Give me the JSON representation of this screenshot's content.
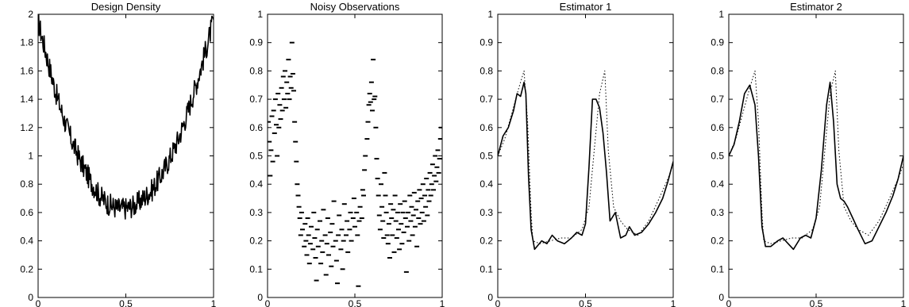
{
  "chart_data": [
    {
      "type": "line",
      "title": "Design Density",
      "xlabel": "",
      "ylabel": "",
      "xlim": [
        0,
        1
      ],
      "ylim": [
        0,
        2
      ],
      "xticks": [
        0,
        0.5,
        1
      ],
      "xtick_labels": [
        "0",
        "0.5",
        "1"
      ],
      "yticks": [
        0,
        0.2,
        0.4,
        0.6,
        0.8,
        1,
        1.2,
        1.4,
        1.6,
        1.8,
        2
      ],
      "ytick_labels": [
        "0",
        "0.2",
        "0.4",
        "0.6",
        "0.8",
        "1",
        "1.2",
        "1.4",
        "1.6",
        "1.8",
        "2"
      ],
      "grid": false,
      "series": [
        {
          "style": "solid",
          "x": [
            0,
            0.05,
            0.1,
            0.15,
            0.2,
            0.25,
            0.3,
            0.35,
            0.4,
            0.45,
            0.5,
            0.55,
            0.6,
            0.65,
            0.7,
            0.75,
            0.8,
            0.85,
            0.9,
            0.95,
            1
          ],
          "y": [
            1.95,
            1.7,
            1.45,
            1.25,
            1.08,
            0.94,
            0.82,
            0.72,
            0.66,
            0.63,
            0.63,
            0.65,
            0.7,
            0.76,
            0.86,
            0.98,
            1.12,
            1.3,
            1.5,
            1.72,
            1.96
          ],
          "noise_amplitude": 0.08
        }
      ]
    },
    {
      "type": "scatter",
      "title": "Noisy Observations",
      "xlabel": "",
      "ylabel": "",
      "xlim": [
        0,
        1
      ],
      "ylim": [
        0,
        1
      ],
      "xticks": [
        0,
        0.5,
        1
      ],
      "xtick_labels": [
        "0",
        "0.5",
        "1"
      ],
      "yticks": [
        0,
        0.1,
        0.2,
        0.3,
        0.4,
        0.5,
        0.6,
        0.7,
        0.8,
        0.9,
        1
      ],
      "ytick_labels": [
        "0",
        "0.1",
        "0.2",
        "0.3",
        "0.4",
        "0.5",
        "0.6",
        "0.7",
        "0.8",
        "0.9",
        "1"
      ],
      "grid": false,
      "points": [
        [
          0.005,
          0.62
        ],
        [
          0.01,
          0.55
        ],
        [
          0.015,
          0.43
        ],
        [
          0.02,
          0.52
        ],
        [
          0.025,
          0.64
        ],
        [
          0.03,
          0.48
        ],
        [
          0.035,
          0.66
        ],
        [
          0.04,
          0.58
        ],
        [
          0.045,
          0.7
        ],
        [
          0.05,
          0.61
        ],
        [
          0.055,
          0.5
        ],
        [
          0.06,
          0.72
        ],
        [
          0.065,
          0.6
        ],
        [
          0.07,
          0.68
        ],
        [
          0.075,
          0.63
        ],
        [
          0.08,
          0.74
        ],
        [
          0.085,
          0.66
        ],
        [
          0.09,
          0.78
        ],
        [
          0.095,
          0.7
        ],
        [
          0.1,
          0.8
        ],
        [
          0.105,
          0.67
        ],
        [
          0.11,
          0.76
        ],
        [
          0.115,
          0.72
        ],
        [
          0.12,
          0.84
        ],
        [
          0.125,
          0.7
        ],
        [
          0.13,
          0.78
        ],
        [
          0.135,
          0.74
        ],
        [
          0.14,
          0.9
        ],
        [
          0.145,
          0.79
        ],
        [
          0.15,
          0.73
        ],
        [
          0.155,
          0.62
        ],
        [
          0.16,
          0.55
        ],
        [
          0.165,
          0.48
        ],
        [
          0.17,
          0.4
        ],
        [
          0.175,
          0.36
        ],
        [
          0.18,
          0.32
        ],
        [
          0.185,
          0.28
        ],
        [
          0.19,
          0.22
        ],
        [
          0.195,
          0.3
        ],
        [
          0.2,
          0.24
        ],
        [
          0.21,
          0.18
        ],
        [
          0.215,
          0.26
        ],
        [
          0.22,
          0.2
        ],
        [
          0.225,
          0.15
        ],
        [
          0.23,
          0.28
        ],
        [
          0.235,
          0.22
        ],
        [
          0.24,
          0.12
        ],
        [
          0.245,
          0.19
        ],
        [
          0.25,
          0.25
        ],
        [
          0.26,
          0.17
        ],
        [
          0.265,
          0.3
        ],
        [
          0.27,
          0.21
        ],
        [
          0.275,
          0.14
        ],
        [
          0.28,
          0.06
        ],
        [
          0.285,
          0.24
        ],
        [
          0.29,
          0.18
        ],
        [
          0.3,
          0.27
        ],
        [
          0.305,
          0.12
        ],
        [
          0.31,
          0.2
        ],
        [
          0.315,
          0.16
        ],
        [
          0.32,
          0.31
        ],
        [
          0.33,
          0.22
        ],
        [
          0.335,
          0.08
        ],
        [
          0.34,
          0.19
        ],
        [
          0.345,
          0.28
        ],
        [
          0.35,
          0.15
        ],
        [
          0.36,
          0.23
        ],
        [
          0.365,
          0.11
        ],
        [
          0.37,
          0.26
        ],
        [
          0.375,
          0.18
        ],
        [
          0.38,
          0.34
        ],
        [
          0.39,
          0.2
        ],
        [
          0.395,
          0.13
        ],
        [
          0.4,
          0.05
        ],
        [
          0.405,
          0.22
        ],
        [
          0.41,
          0.29
        ],
        [
          0.42,
          0.17
        ],
        [
          0.425,
          0.24
        ],
        [
          0.43,
          0.1
        ],
        [
          0.435,
          0.2
        ],
        [
          0.44,
          0.33
        ],
        [
          0.45,
          0.22
        ],
        [
          0.455,
          0.27
        ],
        [
          0.46,
          0.16
        ],
        [
          0.47,
          0.24
        ],
        [
          0.475,
          0.3
        ],
        [
          0.48,
          0.2
        ],
        [
          0.49,
          0.28
        ],
        [
          0.495,
          0.35
        ],
        [
          0.5,
          0.25
        ],
        [
          0.51,
          0.3
        ],
        [
          0.515,
          0.22
        ],
        [
          0.52,
          0.04
        ],
        [
          0.525,
          0.27
        ],
        [
          0.53,
          0.32
        ],
        [
          0.54,
          0.28
        ],
        [
          0.545,
          0.38
        ],
        [
          0.55,
          0.36
        ],
        [
          0.555,
          0.45
        ],
        [
          0.56,
          0.5
        ],
        [
          0.57,
          0.56
        ],
        [
          0.575,
          0.62
        ],
        [
          0.58,
          0.68
        ],
        [
          0.585,
          0.72
        ],
        [
          0.59,
          0.69
        ],
        [
          0.595,
          0.76
        ],
        [
          0.6,
          0.66
        ],
        [
          0.605,
          0.84
        ],
        [
          0.61,
          0.7
        ],
        [
          0.615,
          0.71
        ],
        [
          0.62,
          0.6
        ],
        [
          0.625,
          0.49
        ],
        [
          0.63,
          0.42
        ],
        [
          0.635,
          0.36
        ],
        [
          0.64,
          0.29
        ],
        [
          0.645,
          0.24
        ],
        [
          0.65,
          0.4
        ],
        [
          0.655,
          0.32
        ],
        [
          0.66,
          0.27
        ],
        [
          0.665,
          0.21
        ],
        [
          0.67,
          0.44
        ],
        [
          0.675,
          0.36
        ],
        [
          0.68,
          0.3
        ],
        [
          0.685,
          0.22
        ],
        [
          0.69,
          0.19
        ],
        [
          0.695,
          0.26
        ],
        [
          0.7,
          0.14
        ],
        [
          0.705,
          0.33
        ],
        [
          0.71,
          0.28
        ],
        [
          0.715,
          0.22
        ],
        [
          0.72,
          0.31
        ],
        [
          0.725,
          0.16
        ],
        [
          0.73,
          0.36
        ],
        [
          0.735,
          0.27
        ],
        [
          0.74,
          0.21
        ],
        [
          0.745,
          0.3
        ],
        [
          0.75,
          0.24
        ],
        [
          0.755,
          0.17
        ],
        [
          0.76,
          0.33
        ],
        [
          0.765,
          0.26
        ],
        [
          0.77,
          0.19
        ],
        [
          0.775,
          0.3
        ],
        [
          0.78,
          0.23
        ],
        [
          0.785,
          0.34
        ],
        [
          0.79,
          0.28
        ],
        [
          0.795,
          0.09
        ],
        [
          0.8,
          0.25
        ],
        [
          0.805,
          0.3
        ],
        [
          0.81,
          0.2
        ],
        [
          0.815,
          0.36
        ],
        [
          0.82,
          0.27
        ],
        [
          0.825,
          0.32
        ],
        [
          0.83,
          0.22
        ],
        [
          0.835,
          0.29
        ],
        [
          0.84,
          0.37
        ],
        [
          0.845,
          0.25
        ],
        [
          0.85,
          0.31
        ],
        [
          0.855,
          0.18
        ],
        [
          0.86,
          0.34
        ],
        [
          0.865,
          0.28
        ],
        [
          0.87,
          0.38
        ],
        [
          0.875,
          0.26
        ],
        [
          0.88,
          0.35
        ],
        [
          0.885,
          0.3
        ],
        [
          0.89,
          0.4
        ],
        [
          0.895,
          0.27
        ],
        [
          0.9,
          0.36
        ],
        [
          0.905,
          0.32
        ],
        [
          0.91,
          0.42
        ],
        [
          0.915,
          0.29
        ],
        [
          0.92,
          0.38
        ],
        [
          0.925,
          0.34
        ],
        [
          0.93,
          0.44
        ],
        [
          0.935,
          0.36
        ],
        [
          0.94,
          0.4
        ],
        [
          0.945,
          0.47
        ],
        [
          0.95,
          0.38
        ],
        [
          0.955,
          0.43
        ],
        [
          0.96,
          0.5
        ],
        [
          0.965,
          0.41
        ],
        [
          0.97,
          0.46
        ],
        [
          0.975,
          0.52
        ],
        [
          0.98,
          0.44
        ],
        [
          0.985,
          0.49
        ],
        [
          0.99,
          0.56
        ],
        [
          0.995,
          0.6
        ]
      ]
    },
    {
      "type": "line",
      "title": "Estimator 1",
      "xlabel": "",
      "ylabel": "",
      "xlim": [
        0,
        1
      ],
      "ylim": [
        0,
        1
      ],
      "xticks": [
        0,
        0.5,
        1
      ],
      "xtick_labels": [
        "0",
        "0.5",
        "1"
      ],
      "yticks": [
        0,
        0.1,
        0.2,
        0.3,
        0.4,
        0.5,
        0.6,
        0.7,
        0.8,
        0.9,
        1
      ],
      "ytick_labels": [
        "0",
        "0.1",
        "0.2",
        "0.3",
        "0.4",
        "0.5",
        "0.6",
        "0.7",
        "0.8",
        "0.9",
        "1"
      ],
      "grid": false,
      "series": [
        {
          "style": "dotted",
          "x": [
            0,
            0.04,
            0.08,
            0.12,
            0.15,
            0.17,
            0.19,
            0.2,
            0.24,
            0.3,
            0.36,
            0.42,
            0.48,
            0.52,
            0.55,
            0.58,
            0.61,
            0.63,
            0.66,
            0.7,
            0.74,
            0.8,
            0.86,
            0.92,
            0.97,
            1
          ],
          "y": [
            0.5,
            0.56,
            0.65,
            0.74,
            0.8,
            0.62,
            0.3,
            0.2,
            0.19,
            0.2,
            0.21,
            0.21,
            0.24,
            0.32,
            0.52,
            0.72,
            0.8,
            0.52,
            0.32,
            0.27,
            0.24,
            0.22,
            0.27,
            0.35,
            0.42,
            0.47
          ]
        },
        {
          "style": "solid",
          "x": [
            0,
            0.03,
            0.06,
            0.09,
            0.11,
            0.13,
            0.15,
            0.16,
            0.175,
            0.19,
            0.21,
            0.25,
            0.28,
            0.31,
            0.34,
            0.38,
            0.42,
            0.45,
            0.48,
            0.5,
            0.52,
            0.54,
            0.56,
            0.58,
            0.6,
            0.62,
            0.64,
            0.67,
            0.7,
            0.73,
            0.75,
            0.78,
            0.82,
            0.86,
            0.9,
            0.94,
            0.97,
            1
          ],
          "y": [
            0.5,
            0.57,
            0.6,
            0.66,
            0.72,
            0.71,
            0.76,
            0.72,
            0.43,
            0.24,
            0.17,
            0.2,
            0.19,
            0.22,
            0.2,
            0.19,
            0.21,
            0.23,
            0.22,
            0.26,
            0.46,
            0.7,
            0.7,
            0.67,
            0.58,
            0.44,
            0.27,
            0.3,
            0.21,
            0.22,
            0.25,
            0.22,
            0.23,
            0.26,
            0.3,
            0.35,
            0.41,
            0.48
          ]
        }
      ]
    },
    {
      "type": "line",
      "title": "Estimator 2",
      "xlabel": "",
      "ylabel": "",
      "xlim": [
        0,
        1
      ],
      "ylim": [
        0,
        1
      ],
      "xticks": [
        0,
        0.5,
        1
      ],
      "xtick_labels": [
        "0",
        "0.5",
        "1"
      ],
      "yticks": [
        0,
        0.1,
        0.2,
        0.3,
        0.4,
        0.5,
        0.6,
        0.7,
        0.8,
        0.9,
        1
      ],
      "ytick_labels": [
        "0",
        "0.1",
        "0.2",
        "0.3",
        "0.4",
        "0.5",
        "0.6",
        "0.7",
        "0.8",
        "0.9",
        "1"
      ],
      "grid": false,
      "series": [
        {
          "style": "dotted",
          "x": [
            0,
            0.04,
            0.08,
            0.12,
            0.15,
            0.17,
            0.19,
            0.2,
            0.24,
            0.3,
            0.36,
            0.42,
            0.48,
            0.52,
            0.55,
            0.58,
            0.61,
            0.63,
            0.66,
            0.7,
            0.74,
            0.8,
            0.86,
            0.92,
            0.97,
            1
          ],
          "y": [
            0.5,
            0.56,
            0.65,
            0.74,
            0.8,
            0.62,
            0.3,
            0.2,
            0.19,
            0.2,
            0.21,
            0.21,
            0.24,
            0.32,
            0.52,
            0.72,
            0.8,
            0.52,
            0.32,
            0.27,
            0.24,
            0.22,
            0.27,
            0.35,
            0.42,
            0.47
          ]
        },
        {
          "style": "solid",
          "x": [
            0,
            0.03,
            0.06,
            0.09,
            0.12,
            0.15,
            0.17,
            0.19,
            0.21,
            0.24,
            0.28,
            0.31,
            0.34,
            0.37,
            0.41,
            0.44,
            0.47,
            0.5,
            0.53,
            0.56,
            0.58,
            0.6,
            0.62,
            0.64,
            0.66,
            0.68,
            0.71,
            0.74,
            0.78,
            0.82,
            0.86,
            0.9,
            0.94,
            0.97,
            1
          ],
          "y": [
            0.5,
            0.54,
            0.62,
            0.72,
            0.75,
            0.68,
            0.5,
            0.25,
            0.18,
            0.18,
            0.2,
            0.21,
            0.19,
            0.17,
            0.21,
            0.22,
            0.21,
            0.28,
            0.45,
            0.68,
            0.76,
            0.62,
            0.4,
            0.35,
            0.34,
            0.32,
            0.28,
            0.24,
            0.19,
            0.2,
            0.25,
            0.3,
            0.36,
            0.42,
            0.5
          ]
        }
      ]
    }
  ]
}
